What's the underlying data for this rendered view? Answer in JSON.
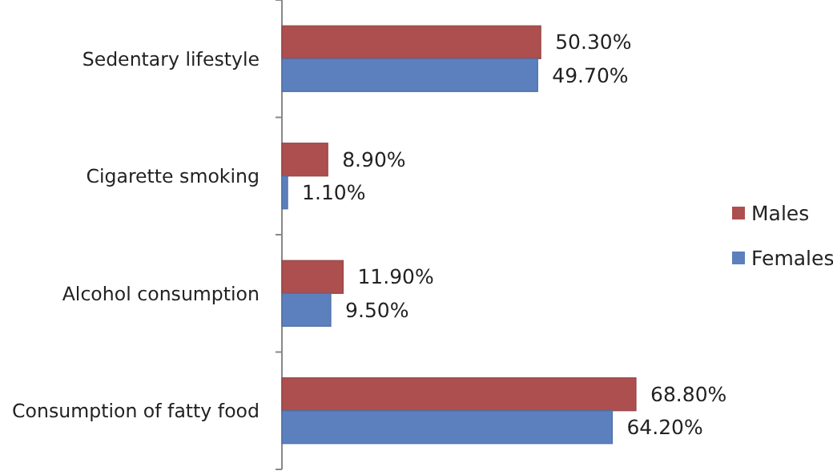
{
  "chart_data": {
    "type": "bar",
    "orientation": "horizontal",
    "categories": [
      "Sedentary lifestyle",
      "Cigarette smoking",
      "Alcohol consumption",
      "Consumption of fatty food"
    ],
    "series": [
      {
        "name": "Males",
        "color": "#ac4f4e",
        "values": [
          50.3,
          8.9,
          11.9,
          68.8
        ],
        "value_labels": [
          "50.30%",
          "8.90%",
          "11.90%",
          "68.80%"
        ]
      },
      {
        "name": "Females",
        "color": "#5b80bd",
        "values": [
          49.7,
          1.1,
          9.5,
          64.2
        ],
        "value_labels": [
          "49.70%",
          "1.10%",
          "9.50%",
          "64.20%"
        ]
      }
    ],
    "legend": "right"
  }
}
